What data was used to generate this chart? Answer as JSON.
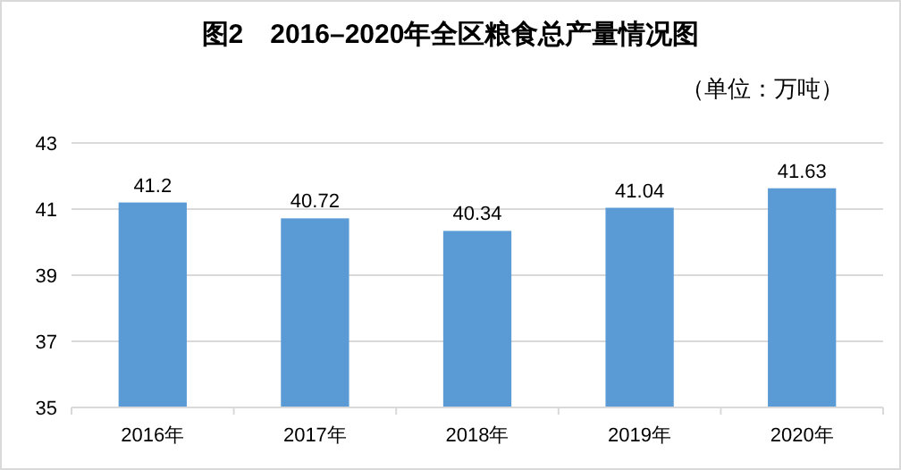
{
  "chart_data": {
    "type": "bar",
    "title": "图2　2016–2020年全区粮食总产量情况图",
    "subtitle": "（单位：万吨）",
    "categories": [
      "2016年",
      "2017年",
      "2018年",
      "2019年",
      "2020年"
    ],
    "values": [
      41.2,
      40.72,
      40.34,
      41.04,
      41.63
    ],
    "color": "#5b9bd5",
    "ylim": [
      35,
      43
    ],
    "yticks": [
      35,
      37,
      39,
      41,
      43
    ],
    "grid": "y",
    "data_labels": true
  }
}
